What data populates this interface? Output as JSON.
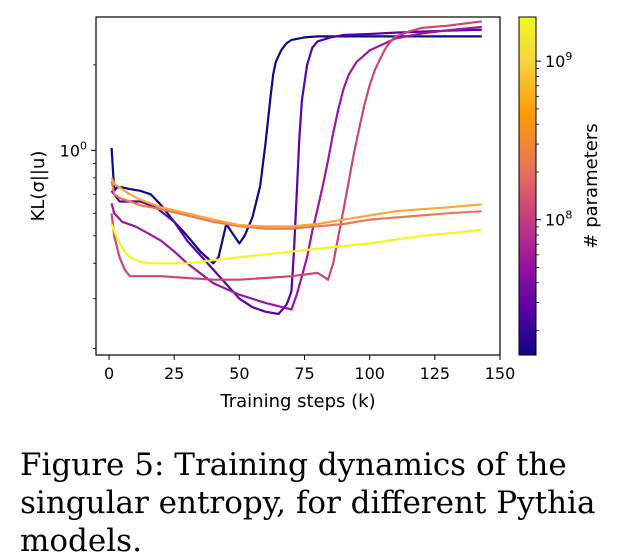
{
  "chart_data": {
    "type": "line",
    "xlabel": "Training steps (k)",
    "ylabel": "KL(σ||u)",
    "xlim": [
      -5,
      150
    ],
    "ylim": [
      0.19,
      2.95
    ],
    "yscale": "log",
    "xticks": [
      "0",
      "25",
      "50",
      "75",
      "100",
      "125",
      "150"
    ],
    "yticks": [
      {
        "value": 1,
        "base": "10",
        "exp": "0"
      }
    ],
    "grid": false,
    "colorbar": {
      "label": "# parameters",
      "colormap": "plasma",
      "scale": "log",
      "range": [
        14000000,
        1900000000
      ],
      "ticks": [
        {
          "value": 100000000,
          "base": "10",
          "exp": "8"
        },
        {
          "value": 1000000000,
          "base": "10",
          "exp": "9"
        }
      ]
    },
    "series": [
      {
        "color": "#0d0887",
        "x": [
          1,
          2,
          3,
          5,
          8,
          12,
          16,
          20,
          25,
          30,
          35,
          40,
          42,
          45,
          48,
          50,
          52,
          55,
          58,
          60,
          62,
          63,
          64,
          66,
          68,
          70,
          75,
          80,
          90,
          100,
          120,
          143
        ],
        "y": [
          1.02,
          0.72,
          0.74,
          0.74,
          0.73,
          0.72,
          0.7,
          0.64,
          0.56,
          0.5,
          0.44,
          0.4,
          0.42,
          0.55,
          0.5,
          0.47,
          0.5,
          0.58,
          0.75,
          1.05,
          1.55,
          1.85,
          2.05,
          2.25,
          2.38,
          2.45,
          2.5,
          2.52,
          2.52,
          2.52,
          2.52,
          2.52
        ]
      },
      {
        "color": "#5c01a6",
        "x": [
          1,
          2,
          4,
          8,
          12,
          18,
          25,
          30,
          40,
          50,
          55,
          60,
          65,
          68,
          69,
          70,
          71,
          72,
          73,
          74,
          76,
          78,
          80,
          85,
          90,
          100,
          110,
          120,
          130,
          143
        ],
        "y": [
          0.72,
          0.7,
          0.66,
          0.66,
          0.66,
          0.63,
          0.56,
          0.48,
          0.38,
          0.3,
          0.28,
          0.27,
          0.265,
          0.285,
          0.3,
          0.32,
          0.45,
          0.7,
          1.1,
          1.5,
          2.0,
          2.3,
          2.42,
          2.5,
          2.55,
          2.57,
          2.6,
          2.62,
          2.64,
          2.66
        ]
      },
      {
        "color": "#9c179e",
        "x": [
          1,
          2,
          5,
          10,
          15,
          20,
          25,
          30,
          40,
          50,
          60,
          70,
          72,
          74,
          76,
          78,
          80,
          82,
          84,
          86,
          88,
          90,
          92,
          95,
          100,
          110,
          120,
          130,
          143
        ],
        "y": [
          0.65,
          0.6,
          0.56,
          0.54,
          0.51,
          0.48,
          0.44,
          0.4,
          0.34,
          0.31,
          0.29,
          0.275,
          0.31,
          0.36,
          0.42,
          0.52,
          0.62,
          0.75,
          0.92,
          1.15,
          1.4,
          1.65,
          1.85,
          2.05,
          2.25,
          2.48,
          2.58,
          2.65,
          2.72
        ]
      },
      {
        "color": "#cc4778",
        "x": [
          1,
          2,
          4,
          6,
          8,
          10,
          15,
          20,
          30,
          40,
          50,
          60,
          70,
          80,
          82,
          84,
          86,
          88,
          90,
          92,
          94,
          96,
          98,
          100,
          102,
          104,
          106,
          108,
          110,
          115,
          120,
          130,
          143
        ],
        "y": [
          0.6,
          0.5,
          0.42,
          0.38,
          0.36,
          0.36,
          0.36,
          0.36,
          0.355,
          0.35,
          0.35,
          0.355,
          0.36,
          0.37,
          0.36,
          0.35,
          0.4,
          0.5,
          0.62,
          0.78,
          0.98,
          1.2,
          1.45,
          1.7,
          1.92,
          2.1,
          2.28,
          2.42,
          2.52,
          2.62,
          2.7,
          2.75,
          2.85
        ]
      },
      {
        "color": "#ed7953",
        "x": [
          1,
          2,
          4,
          8,
          12,
          20,
          30,
          40,
          50,
          60,
          70,
          80,
          90,
          100,
          110,
          120,
          130,
          143
        ],
        "y": [
          0.78,
          0.7,
          0.68,
          0.66,
          0.64,
          0.62,
          0.59,
          0.56,
          0.54,
          0.53,
          0.53,
          0.54,
          0.55,
          0.57,
          0.58,
          0.59,
          0.6,
          0.61
        ]
      },
      {
        "color": "#fca636",
        "x": [
          1,
          2,
          4,
          8,
          12,
          20,
          30,
          40,
          50,
          60,
          70,
          80,
          90,
          100,
          110,
          120,
          130,
          143
        ],
        "y": [
          0.8,
          0.76,
          0.74,
          0.7,
          0.67,
          0.63,
          0.6,
          0.57,
          0.545,
          0.54,
          0.54,
          0.55,
          0.57,
          0.59,
          0.61,
          0.62,
          0.63,
          0.645
        ]
      },
      {
        "color": "#f0f921",
        "x": [
          1,
          2,
          4,
          6,
          8,
          12,
          16,
          20,
          25,
          30,
          40,
          50,
          60,
          70,
          80,
          90,
          100,
          110,
          120,
          130,
          143
        ],
        "y": [
          0.55,
          0.52,
          0.47,
          0.44,
          0.42,
          0.405,
          0.4,
          0.4,
          0.4,
          0.4,
          0.41,
          0.42,
          0.43,
          0.44,
          0.45,
          0.46,
          0.47,
          0.485,
          0.5,
          0.51,
          0.525
        ]
      }
    ]
  },
  "caption": "Figure 5: Training dynamics of the singular entropy, for different Pythia models."
}
